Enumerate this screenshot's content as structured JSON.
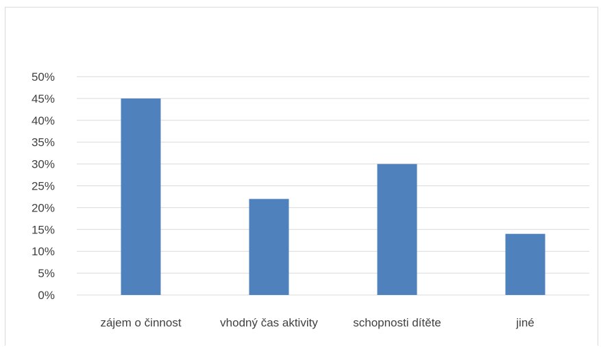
{
  "chart_data": {
    "type": "bar",
    "title": "",
    "xlabel": "",
    "ylabel": "",
    "categories": [
      "zájem o činnost",
      "vhodný čas aktivity",
      "schopnosti dítěte",
      "jiné"
    ],
    "values": [
      45,
      22,
      30,
      14
    ],
    "unit": "%",
    "ylim": [
      0,
      50
    ],
    "ytick_step": 5,
    "yticks": [
      "0%",
      "5%",
      "10%",
      "15%",
      "20%",
      "25%",
      "30%",
      "35%",
      "40%",
      "45%",
      "50%"
    ],
    "grid": true,
    "legend": "none",
    "bar_color": "#4f81bd",
    "grid_color": "#d9d9d9",
    "text_color": "#404040"
  }
}
